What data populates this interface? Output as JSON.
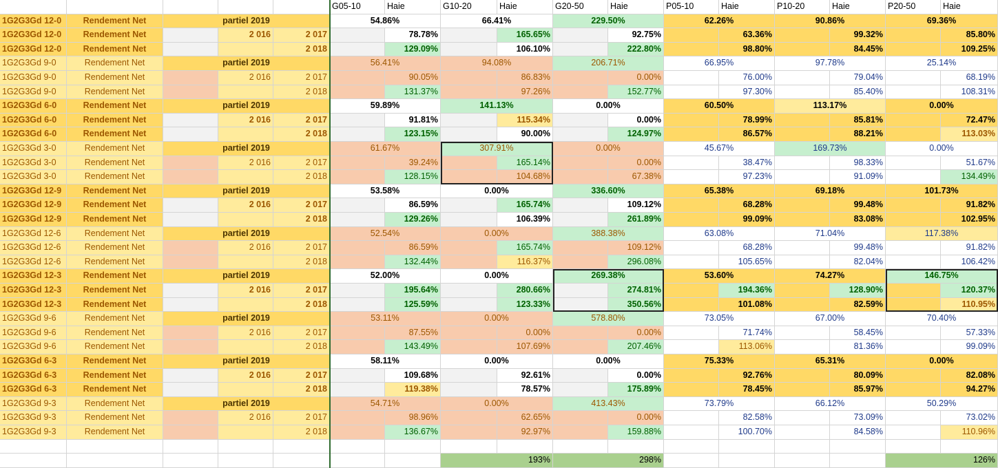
{
  "header": [
    "G05-10",
    "Haie",
    "G10-20",
    "Haie",
    "G20-50",
    "Haie",
    "P05-10",
    "Haie",
    "P10-20",
    "Haie",
    "P20-50",
    "Haie"
  ],
  "labels": {
    "rendement": "Rendement Net",
    "partiel": "partiel 2019",
    "y2016": "2 016",
    "y2017": "2 017",
    "y2018": "2 018"
  },
  "colors": {
    "yellow": "#ffd966",
    "orange": "#f8cbad",
    "green": "#c6efce",
    "lightyellow": "#ffeb9c",
    "gray": "#f2f2f2",
    "white": "#ffffff",
    "darkgreen": "#a9d08e"
  },
  "groups": [
    {
      "name": "1G2G3Gd 12-0",
      "bold": true,
      "p19": [
        "54.86%",
        "66.41%",
        "229.50%",
        "62.26%",
        "90.86%",
        "69.36%"
      ],
      "r17": [
        "78.78%",
        "165.65%",
        "92.75%",
        "63.36%",
        "99.32%",
        "85.80%"
      ],
      "r18": [
        "129.09%",
        "106.10%",
        "222.80%",
        "98.80%",
        "84.45%",
        "109.25%"
      ]
    },
    {
      "name": "1G2G3Gd 9-0",
      "bold": false,
      "p19": [
        "56.41%",
        "94.08%",
        "206.71%",
        "66.95%",
        "97.78%",
        "25.14%"
      ],
      "r17": [
        "90.05%",
        "86.83%",
        "0.00%",
        "76.00%",
        "79.04%",
        "68.19%"
      ],
      "r18": [
        "131.37%",
        "97.26%",
        "152.77%",
        "97.30%",
        "85.40%",
        "108.31%"
      ]
    },
    {
      "name": "1G2G3Gd 6-0",
      "bold": true,
      "p19": [
        "59.89%",
        "141.13%",
        "0.00%",
        "60.50%",
        "113.17%",
        "0.00%"
      ],
      "r17": [
        "91.81%",
        "115.34%",
        "0.00%",
        "78.99%",
        "85.81%",
        "72.47%"
      ],
      "r18": [
        "123.15%",
        "90.00%",
        "124.97%",
        "86.57%",
        "88.21%",
        "113.03%"
      ]
    },
    {
      "name": "1G2G3Gd 3-0",
      "bold": false,
      "p19": [
        "61.67%",
        "307.91%",
        "0.00%",
        "45.67%",
        "169.73%",
        "0.00%"
      ],
      "r17": [
        "39.24%",
        "165.14%",
        "0.00%",
        "38.47%",
        "98.33%",
        "51.67%"
      ],
      "r18": [
        "128.15%",
        "104.68%",
        "67.38%",
        "97.23%",
        "91.09%",
        "134.49%"
      ]
    },
    {
      "name": "1G2G3Gd 12-9",
      "bold": true,
      "p19": [
        "53.58%",
        "0.00%",
        "336.60%",
        "65.38%",
        "69.18%",
        "101.73%"
      ],
      "r17": [
        "86.59%",
        "165.74%",
        "109.12%",
        "68.28%",
        "99.48%",
        "91.82%"
      ],
      "r18": [
        "129.26%",
        "106.39%",
        "261.89%",
        "99.09%",
        "83.08%",
        "102.95%"
      ]
    },
    {
      "name": "1G2G3Gd 12-6",
      "bold": false,
      "p19": [
        "52.54%",
        "0.00%",
        "388.38%",
        "63.08%",
        "71.04%",
        "117.38%"
      ],
      "r17": [
        "86.59%",
        "165.74%",
        "109.12%",
        "68.28%",
        "99.48%",
        "91.82%"
      ],
      "r18": [
        "132.44%",
        "116.37%",
        "296.08%",
        "105.65%",
        "82.04%",
        "106.42%"
      ]
    },
    {
      "name": "1G2G3Gd 12-3",
      "bold": true,
      "p19": [
        "52.00%",
        "0.00%",
        "269.38%",
        "53.60%",
        "74.27%",
        "146.75%"
      ],
      "r17": [
        "195.64%",
        "280.66%",
        "274.81%",
        "194.36%",
        "128.90%",
        "120.37%"
      ],
      "r18": [
        "125.59%",
        "123.33%",
        "350.56%",
        "101.08%",
        "82.59%",
        "110.95%"
      ]
    },
    {
      "name": "1G2G3Gd 9-6",
      "bold": false,
      "p19": [
        "53.11%",
        "0.00%",
        "578.80%",
        "73.05%",
        "67.00%",
        "70.40%"
      ],
      "r17": [
        "87.55%",
        "0.00%",
        "0.00%",
        "71.74%",
        "58.45%",
        "57.33%"
      ],
      "r18": [
        "143.49%",
        "107.69%",
        "207.46%",
        "113.06%",
        "81.36%",
        "99.09%"
      ]
    },
    {
      "name": "1G2G3Gd 6-3",
      "bold": true,
      "p19": [
        "58.11%",
        "0.00%",
        "0.00%",
        "75.33%",
        "65.31%",
        "0.00%"
      ],
      "r17": [
        "109.68%",
        "92.61%",
        "0.00%",
        "92.76%",
        "80.09%",
        "82.08%"
      ],
      "r18": [
        "119.38%",
        "78.57%",
        "175.89%",
        "78.45%",
        "85.97%",
        "94.27%"
      ]
    },
    {
      "name": "1G2G3Gd 9-3",
      "bold": false,
      "p19": [
        "54.71%",
        "0.00%",
        "413.43%",
        "73.79%",
        "66.12%",
        "50.29%"
      ],
      "r17": [
        "98.96%",
        "62.65%",
        "0.00%",
        "82.58%",
        "73.09%",
        "73.02%"
      ],
      "r18": [
        "136.67%",
        "92.97%",
        "159.88%",
        "100.70%",
        "84.58%",
        "110.96%"
      ]
    }
  ],
  "totals": [
    "193%",
    "298%",
    "126%"
  ]
}
